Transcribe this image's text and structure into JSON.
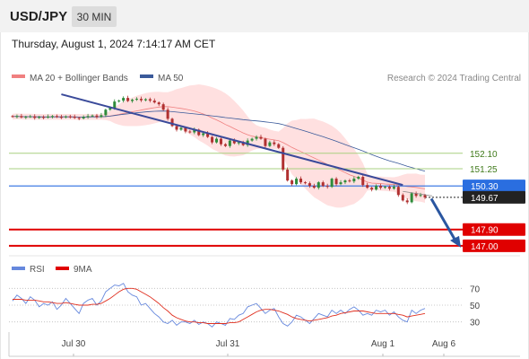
{
  "header": {
    "symbol": "USD/JPY",
    "timeframe": "30 MIN",
    "timestamp": "Thursday, August 1, 2024 7:14:17 AM CET"
  },
  "legend": {
    "ma20": "MA 20 + Bollinger Bands",
    "ma50": "MA 50",
    "copyright": "Research © 2024 Trading Central"
  },
  "rsi_legend": {
    "rsi": "RSI",
    "ma": "9MA"
  },
  "colors": {
    "ma20": "#f08080",
    "ma50": "#3a5a9a",
    "bollinger_fill": "#ffd6d6",
    "resistance": "#a8d080",
    "support": "#e00000",
    "pivot": "#2a6ee0",
    "current": "#222222",
    "trendline": "#3a4a9a",
    "arrow": "#2a56a0",
    "rsi": "#6688dd",
    "rsi_ma": "#e03020",
    "candle_up": "#2e8b3a",
    "candle_down": "#b03030"
  },
  "chart_data": [
    {
      "type": "candlestick",
      "x_labels": [
        "Jul 30",
        "Jul 31",
        "Aug 1",
        "Aug 6"
      ],
      "ylim": [
        146.5,
        155.6
      ],
      "close": [
        154.12,
        154.15,
        154.08,
        154.11,
        154.13,
        154.05,
        154.1,
        154.07,
        154.12,
        154.15,
        154.1,
        154.08,
        154.13,
        154.11,
        154.05,
        154.02,
        154.1,
        154.15,
        154.18,
        154.1,
        154.2,
        154.5,
        154.6,
        154.95,
        155.0,
        155.15,
        154.98,
        155.05,
        155.1,
        155.02,
        155.08,
        155.0,
        154.9,
        154.8,
        154.5,
        154.0,
        153.6,
        153.4,
        153.5,
        153.3,
        153.25,
        153.4,
        153.1,
        153.2,
        153.0,
        152.7,
        152.9,
        152.6,
        152.5,
        152.8,
        152.65,
        152.7,
        152.55,
        152.8,
        152.9,
        153.0,
        152.9,
        152.5,
        152.7,
        152.6,
        152.4,
        151.2,
        150.6,
        150.4,
        150.7,
        150.5,
        150.45,
        150.3,
        150.2,
        150.5,
        150.3,
        150.25,
        150.7,
        150.4,
        150.5,
        150.6,
        150.55,
        150.7,
        150.8,
        150.35,
        150.2,
        150.1,
        150.3,
        150.2,
        150.25,
        150.15,
        150.25,
        149.8,
        149.5,
        149.4,
        149.9,
        149.75,
        149.8,
        149.67
      ],
      "levels": [
        {
          "label": "152.10",
          "value": 152.1,
          "kind": "resistance"
        },
        {
          "label": "151.25",
          "value": 151.25,
          "kind": "resistance"
        },
        {
          "label": "150.30",
          "value": 150.3,
          "kind": "pivot"
        },
        {
          "label": "149.67",
          "value": 149.67,
          "kind": "current"
        },
        {
          "label": "147.90",
          "value": 147.9,
          "kind": "support"
        },
        {
          "label": "147.00",
          "value": 147.0,
          "kind": "support"
        }
      ]
    },
    {
      "type": "line",
      "ylim": [
        20,
        80
      ],
      "y_ticks": [
        70,
        50,
        30
      ],
      "series": [
        {
          "name": "RSI",
          "values": [
            55,
            62,
            58,
            52,
            60,
            56,
            48,
            52,
            50,
            54,
            45,
            50,
            58,
            52,
            46,
            40,
            52,
            56,
            58,
            50,
            55,
            66,
            70,
            74,
            73,
            76,
            66,
            62,
            60,
            50,
            52,
            46,
            40,
            36,
            30,
            28,
            32,
            26,
            30,
            30,
            28,
            32,
            27,
            30,
            28,
            24,
            30,
            28,
            26,
            34,
            33,
            38,
            40,
            48,
            50,
            52,
            46,
            40,
            44,
            46,
            36,
            28,
            25,
            30,
            38,
            36,
            32,
            28,
            34,
            40,
            38,
            36,
            44,
            40,
            44,
            40,
            45,
            48,
            44,
            38,
            40,
            38,
            44,
            42,
            44,
            38,
            42,
            36,
            32,
            30,
            44,
            40,
            44,
            46
          ]
        },
        {
          "name": "9MA",
          "values": [
            57,
            57,
            57,
            56,
            56,
            56,
            55,
            54,
            54,
            53,
            52,
            52,
            53,
            52,
            51,
            50,
            50,
            50,
            51,
            51,
            52,
            55,
            58,
            62,
            66,
            69,
            70,
            70,
            69,
            66,
            63,
            60,
            56,
            52,
            47,
            43,
            38,
            35,
            33,
            31,
            30,
            30,
            29,
            29,
            28,
            28,
            28,
            28,
            28,
            29,
            29,
            30,
            33,
            36,
            39,
            42,
            44,
            45,
            45,
            44,
            43,
            41,
            39,
            36,
            34,
            33,
            32,
            31,
            32,
            33,
            34,
            35,
            37,
            38,
            40,
            41,
            42,
            43,
            43,
            43,
            42,
            41,
            40,
            40,
            40,
            40,
            40,
            39,
            38,
            36,
            37,
            38,
            39,
            40
          ]
        }
      ]
    }
  ]
}
